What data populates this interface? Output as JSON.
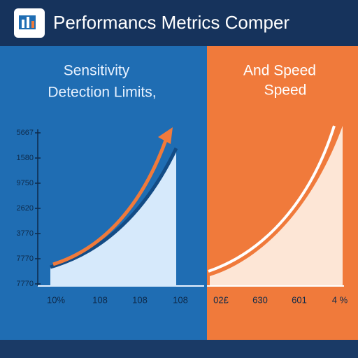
{
  "header": {
    "title": "Performancs Metrics Comper"
  },
  "panels": [
    {
      "title_lines": [
        "Sensitivity",
        "Detection Limits,"
      ],
      "y_labels": [
        "5667",
        "1580",
        "9750",
        "2620",
        "3770",
        "7770",
        "7770"
      ],
      "x_labels": [
        "10%",
        "108",
        "108",
        "108"
      ]
    },
    {
      "title_lines": [
        "And Speed",
        "Speed"
      ],
      "x_labels": [
        "02£",
        "630",
        "601",
        "4 %"
      ]
    }
  ]
}
